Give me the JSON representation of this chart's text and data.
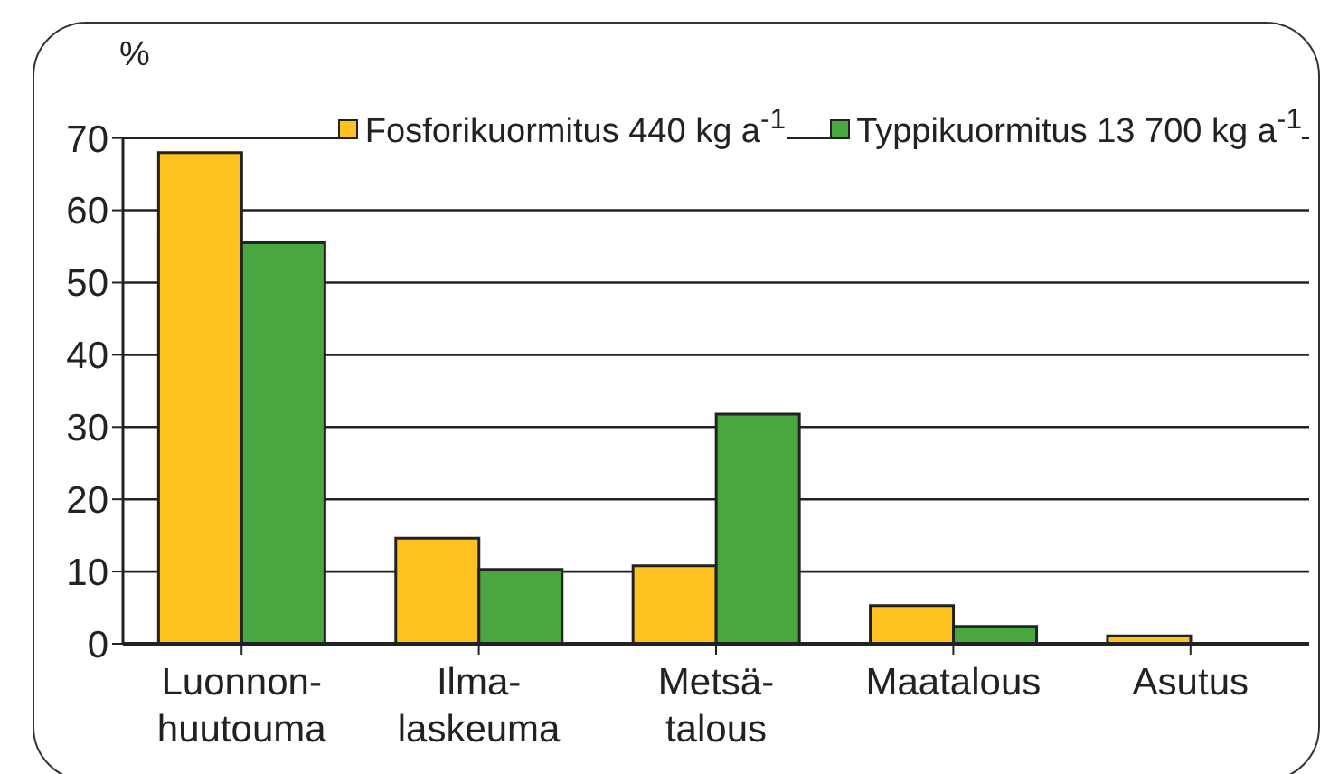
{
  "chart_data": {
    "type": "bar",
    "ylabel": "%",
    "categories": [
      "Luonnon-\nhuutouma",
      "Ilma-\nlaskeuma",
      "Metsä-\ntalous",
      "Maatalous",
      "Asutus"
    ],
    "series": [
      {
        "name": "Fosforikuormitus 440 kg a$^{-1}$",
        "color": "#fdc120",
        "values": [
          68,
          14.6,
          10.8,
          5.3,
          1.1
        ]
      },
      {
        "name": "Typpikuormitus 13 700 kg a$^{-1}$",
        "color": "#4aa641",
        "values": [
          55.5,
          10.3,
          31.8,
          2.4,
          0
        ]
      }
    ],
    "ylim": [
      0,
      70
    ],
    "yticks": [
      0,
      10,
      20,
      30,
      40,
      50,
      60,
      70
    ],
    "grid": "y",
    "legend": "top right"
  }
}
